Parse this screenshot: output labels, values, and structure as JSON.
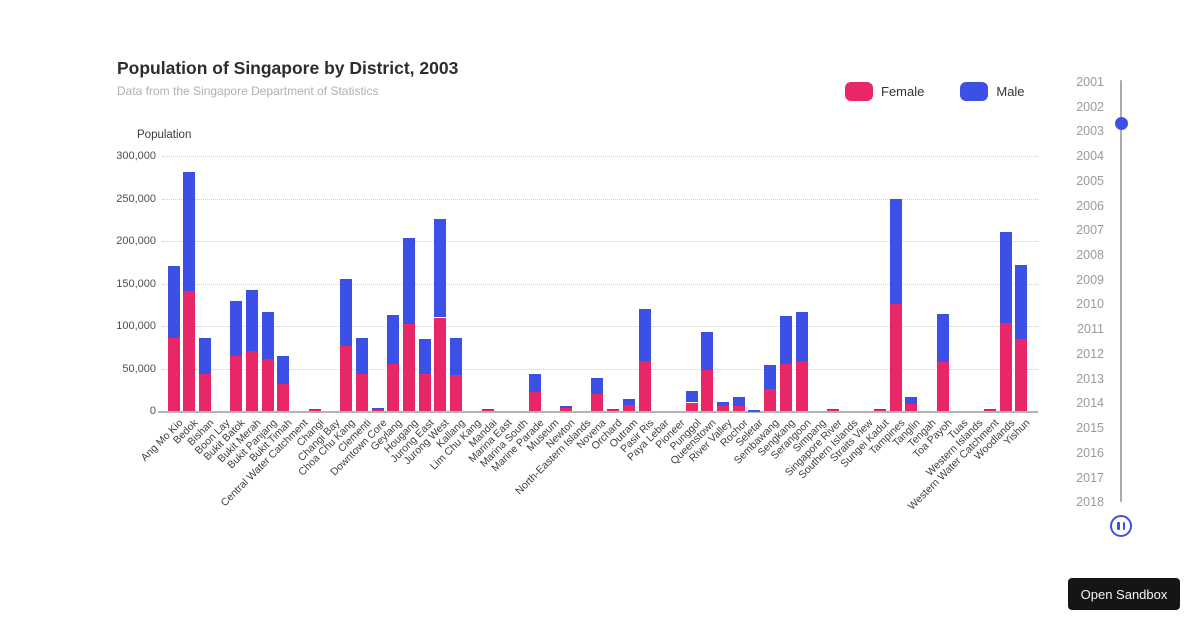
{
  "header": {
    "title": "Population of Singapore by District, 2003",
    "subtitle": "Data from the Singapore Department of Statistics"
  },
  "chart_data": {
    "type": "bar",
    "stacked": true,
    "title": "Population of Singapore by District, 2003",
    "xlabel": "",
    "ylabel": "Population",
    "ylim": [
      0,
      300000
    ],
    "ytick_step": 50000,
    "yticks": [
      "300,000",
      "250,000",
      "200,000",
      "150,000",
      "100,000",
      "50,000",
      "0"
    ],
    "grid": "horizontal-dotted",
    "legend_position": "top-right",
    "categories": [
      "Ang Mo Kio",
      "Bedok",
      "Bishan",
      "Boon Lay",
      "Bukit Batok",
      "Bukit Merah",
      "Bukit Panjang",
      "Bukit Timah",
      "Central Water Catchment",
      "Changi",
      "Changi Bay",
      "Choa Chu Kang",
      "Clementi",
      "Downtown Core",
      "Geylang",
      "Hougang",
      "Jurong East",
      "Jurong West",
      "Kallang",
      "Lim Chu Kang",
      "Mandai",
      "Marina East",
      "Marina South",
      "Marine Parade",
      "Museum",
      "Newton",
      "North-Eastern Islands",
      "Novena",
      "Orchard",
      "Outram",
      "Pasir Ris",
      "Paya Lebar",
      "Pioneer",
      "Punggol",
      "Queenstown",
      "River Valley",
      "Rochor",
      "Seletar",
      "Sembawang",
      "Sengkang",
      "Serangoon",
      "Simpang",
      "Singapore River",
      "Southern Islands",
      "Straits View",
      "Sungei Kadut",
      "Tampines",
      "Tanglin",
      "Tengah",
      "Toa Payoh",
      "Tuas",
      "Western Islands",
      "Western Water Catchment",
      "Woodlands",
      "Yishun"
    ],
    "series": [
      {
        "name": "Female",
        "color": "#e82668",
        "values": [
          86000,
          141000,
          43000,
          0,
          65000,
          71000,
          61000,
          32000,
          0,
          1000,
          0,
          77000,
          43000,
          1500,
          55000,
          102000,
          43000,
          110000,
          42000,
          0,
          1000,
          0,
          0,
          22000,
          0,
          3000,
          0,
          20000,
          1000,
          7000,
          59000,
          0,
          0,
          10000,
          48000,
          6000,
          6000,
          500,
          26000,
          55000,
          59000,
          0,
          1000,
          0,
          0,
          1000,
          126000,
          8000,
          0,
          58000,
          0,
          0,
          1000,
          104000,
          85000
        ]
      },
      {
        "name": "Male",
        "color": "#3d50e6",
        "values": [
          85000,
          140000,
          43000,
          0,
          65000,
          71000,
          55000,
          33000,
          0,
          1000,
          0,
          78000,
          43000,
          1500,
          58000,
          102000,
          42000,
          116000,
          44000,
          0,
          1000,
          0,
          0,
          21000,
          0,
          3000,
          0,
          19000,
          1000,
          7000,
          61000,
          0,
          0,
          13000,
          45000,
          5000,
          10000,
          500,
          28000,
          57000,
          58000,
          0,
          1000,
          0,
          0,
          1000,
          124000,
          8000,
          0,
          56000,
          0,
          0,
          1000,
          107000,
          87000
        ]
      }
    ]
  },
  "year_slider": {
    "years": [
      "2001",
      "2002",
      "2003",
      "2004",
      "2005",
      "2006",
      "2007",
      "2008",
      "2009",
      "2010",
      "2011",
      "2012",
      "2013",
      "2014",
      "2015",
      "2016",
      "2017",
      "2018"
    ],
    "selected": "2003",
    "accent_color": "#3d50e6"
  },
  "sandbox_button": {
    "label": "Open Sandbox",
    "bg_color": "#151515"
  }
}
